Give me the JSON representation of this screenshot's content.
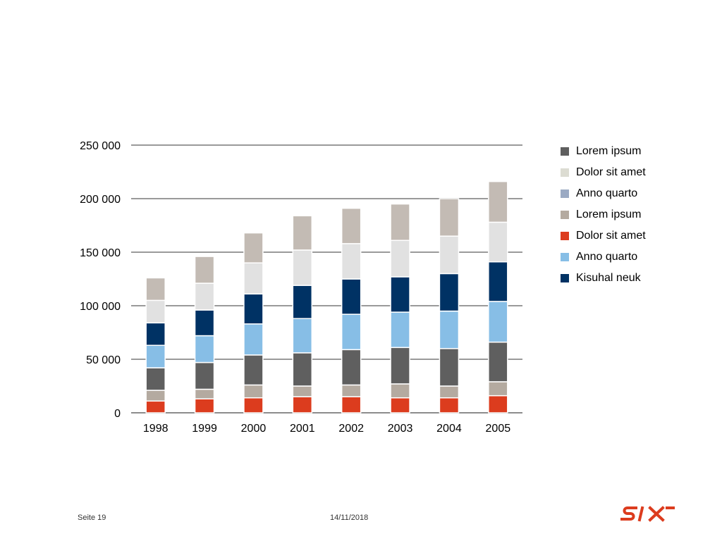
{
  "chart_data": {
    "type": "bar",
    "stacked": true,
    "categories": [
      "1998",
      "1999",
      "2000",
      "2001",
      "2002",
      "2003",
      "2004",
      "2005"
    ],
    "ylim": [
      0,
      250000
    ],
    "yticks": [
      0,
      50000,
      100000,
      150000,
      200000,
      250000
    ],
    "ytick_labels": [
      "0",
      "50 000",
      "100 000",
      "150 000",
      "200 000",
      "250 000"
    ],
    "grid": true,
    "legend_position": "right",
    "series": [
      {
        "name": "Dolor sit amet",
        "color": "#dc3c1e",
        "values": [
          11000,
          13000,
          14000,
          15000,
          15000,
          14000,
          14000,
          16000
        ]
      },
      {
        "name": "Lorem ipsum",
        "color": "#b4aaa0",
        "values": [
          10000,
          9000,
          12000,
          10000,
          11000,
          13000,
          11000,
          13000
        ]
      },
      {
        "name": "Lorem ipsum",
        "color": "#5f5f5f",
        "values": [
          21000,
          25000,
          28000,
          31000,
          33000,
          34000,
          35000,
          37000
        ]
      },
      {
        "name": "Anno quarto",
        "color": "#87bee6",
        "values": [
          21000,
          25000,
          29000,
          32000,
          33000,
          33000,
          35000,
          38000
        ]
      },
      {
        "name": "Kisuhal neuk",
        "color": "#003264",
        "values": [
          21000,
          24000,
          28000,
          31000,
          33000,
          33000,
          35000,
          37000
        ]
      },
      {
        "name": "Dolor sit amet",
        "color": "#e1e1e1",
        "values": [
          21000,
          25000,
          29000,
          33000,
          33000,
          34000,
          35000,
          37000
        ]
      },
      {
        "name": "Anno quarto",
        "color": "#9baac3",
        "values": [
          0,
          0,
          0,
          0,
          0,
          0,
          0,
          0
        ]
      },
      {
        "name": "Lorem ipsum",
        "color": "#c3bbb4",
        "values": [
          21000,
          25000,
          28000,
          32000,
          33000,
          34000,
          35000,
          38000
        ]
      }
    ]
  },
  "legend": [
    {
      "label": "Lorem ipsum",
      "color": "#5f5f5f"
    },
    {
      "label": "Dolor sit amet",
      "color": "#dcdcd2"
    },
    {
      "label": "Anno quarto",
      "color": "#9baac3"
    },
    {
      "label": "Lorem ipsum",
      "color": "#b4aaa0"
    },
    {
      "label": "Dolor sit amet",
      "color": "#dc3c1e"
    },
    {
      "label": "Anno quarto",
      "color": "#87bee6"
    },
    {
      "label": "Kisuhal neuk",
      "color": "#003264"
    }
  ],
  "footer": {
    "page": "Seite 19",
    "date": "14/11/2018",
    "logo_text": "SIX",
    "logo_color": "#dc3c1e"
  }
}
